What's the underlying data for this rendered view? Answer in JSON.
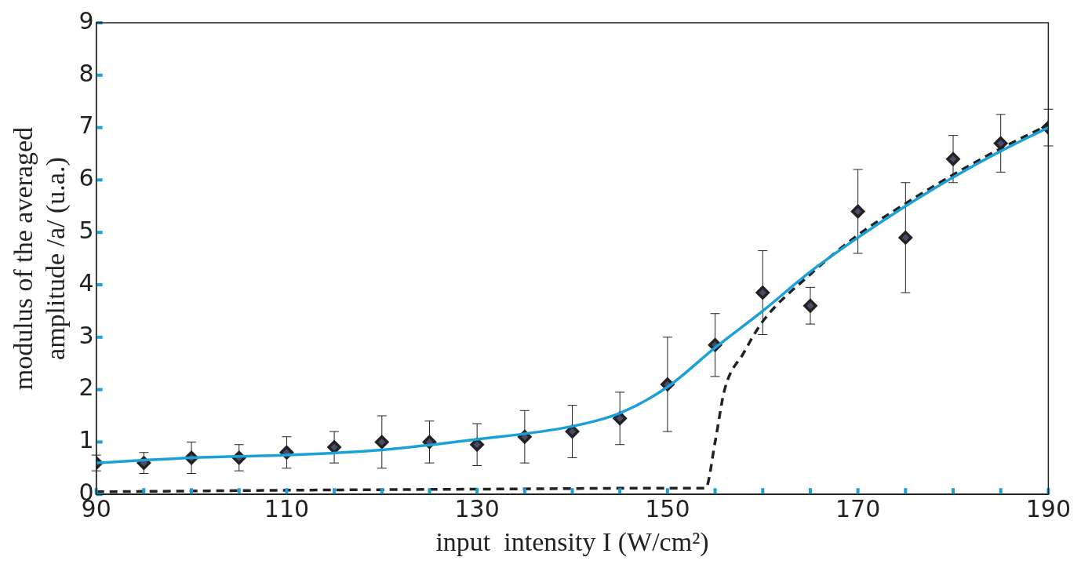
{
  "chart_data": {
    "type": "scatter",
    "xlabel": "input  intensity I (W/cm²)",
    "ylabel": "modulus of the averaged\namplitude /a/ (u.a.)",
    "xlim": [
      90,
      190
    ],
    "ylim": [
      0,
      9
    ],
    "xticks": [
      90,
      {
        "value": 95,
        "label": null
      },
      {
        "value": 100,
        "label": null
      },
      {
        "value": 105,
        "label": null
      },
      110,
      {
        "value": 115,
        "label": null
      },
      {
        "value": 120,
        "label": null
      },
      {
        "value": 125,
        "label": null
      },
      130,
      {
        "value": 135,
        "label": null
      },
      {
        "value": 140,
        "label": null
      },
      {
        "value": 145,
        "label": null
      },
      150,
      {
        "value": 155,
        "label": null
      },
      {
        "value": 160,
        "label": null
      },
      {
        "value": 165,
        "label": null
      },
      170,
      {
        "value": 175,
        "label": null
      },
      {
        "value": 180,
        "label": null
      },
      {
        "value": 185,
        "label": null
      },
      190
    ],
    "yticks": [
      0,
      1,
      2,
      3,
      4,
      5,
      6,
      7,
      8,
      9
    ],
    "grid": false,
    "legend": false,
    "series": [
      {
        "type": "line",
        "color": "#1ba1d8",
        "line_style": "solid",
        "marker": "none",
        "x": [
          90,
          100,
          110,
          120,
          130,
          140,
          145,
          150,
          155,
          160,
          165,
          170,
          175,
          180,
          185,
          190
        ],
        "values": [
          0.6,
          0.7,
          0.75,
          0.85,
          1.05,
          1.3,
          1.55,
          2.05,
          2.8,
          3.5,
          4.25,
          4.9,
          5.5,
          6.05,
          6.55,
          7.0
        ]
      },
      {
        "type": "line",
        "color": "#222222",
        "line_style": "dashed",
        "marker": "none",
        "x": [
          90,
          110,
          130,
          150,
          154,
          155,
          156,
          158,
          160,
          165,
          170,
          175,
          180,
          185,
          190
        ],
        "values": [
          0.05,
          0.08,
          0.1,
          0.12,
          0.12,
          1.0,
          2.0,
          2.7,
          3.3,
          4.2,
          4.95,
          5.55,
          6.1,
          6.6,
          7.05
        ]
      },
      {
        "type": "scatter",
        "color": "#4a4a6a",
        "marker": "diamond",
        "x": [
          90,
          95,
          100,
          105,
          110,
          115,
          120,
          125,
          130,
          135,
          140,
          145,
          150,
          155,
          160,
          165,
          170,
          175,
          180,
          185,
          190
        ],
        "values": [
          0.6,
          0.6,
          0.7,
          0.7,
          0.8,
          0.9,
          1.0,
          1.0,
          0.95,
          1.1,
          1.2,
          1.45,
          2.1,
          2.85,
          3.85,
          3.6,
          5.4,
          4.9,
          6.4,
          6.7,
          7.0
        ],
        "errors": [
          0.15,
          0.2,
          0.3,
          0.25,
          0.3,
          0.3,
          0.5,
          0.4,
          0.4,
          0.5,
          0.5,
          0.5,
          0.9,
          0.6,
          0.8,
          0.35,
          0.8,
          1.05,
          0.45,
          0.55,
          0.35
        ]
      }
    ]
  }
}
